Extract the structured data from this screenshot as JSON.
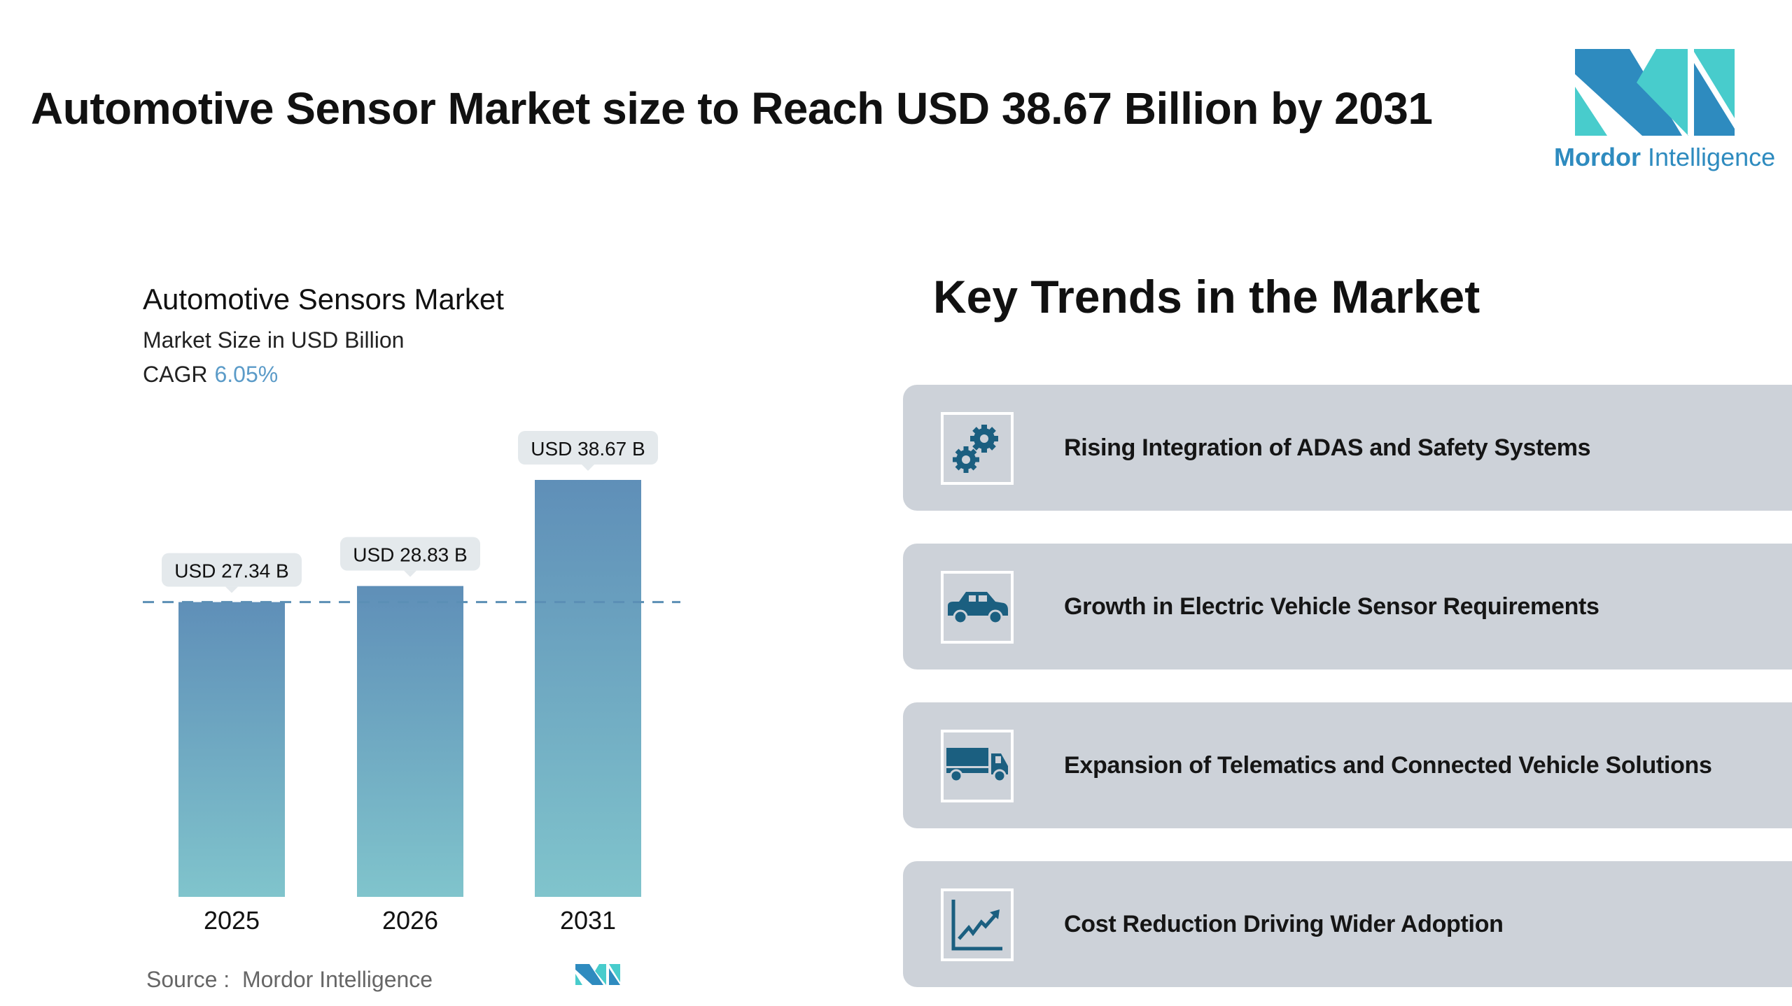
{
  "header": {
    "title": "Automotive Sensor Market size to Reach USD 38.67 Billion by 2031"
  },
  "logo": {
    "word1": "Mordor",
    "word2": "Intelligence"
  },
  "colors": {
    "bar_top": "#5f8fb8",
    "bar_bottom": "#80c4cc",
    "card_bg": "#cdd2d9",
    "icon": "#1b5f80",
    "cagr": "#5b9bc8",
    "logo_dark": "#2e8bbf",
    "logo_light": "#48cccc"
  },
  "chart_data": {
    "type": "bar",
    "title": "Automotive Sensors Market",
    "subtitle": "Market Size in USD Billion",
    "cagr_label": "CAGR",
    "cagr_value": "6.05%",
    "categories": [
      "2025",
      "2026",
      "2031"
    ],
    "values": [
      27.34,
      28.83,
      38.67
    ],
    "data_labels": [
      "USD 27.34 B",
      "USD 28.83 B",
      "USD 38.67 B"
    ],
    "reference_line": 27.34,
    "ylim": [
      0,
      38.67
    ],
    "grid": false
  },
  "source": {
    "label": "Source :",
    "value": "Mordor Intelligence"
  },
  "trends": {
    "title": "Key Trends in the Market",
    "items": [
      {
        "icon": "gears-icon",
        "label": "Rising Integration of ADAS and Safety Systems"
      },
      {
        "icon": "car-icon",
        "label": "Growth in Electric Vehicle Sensor Requirements"
      },
      {
        "icon": "truck-icon",
        "label": "Expansion of Telematics and Connected Vehicle Solutions"
      },
      {
        "icon": "trend-chart-icon",
        "label": "Cost Reduction Driving Wider Adoption"
      }
    ]
  }
}
